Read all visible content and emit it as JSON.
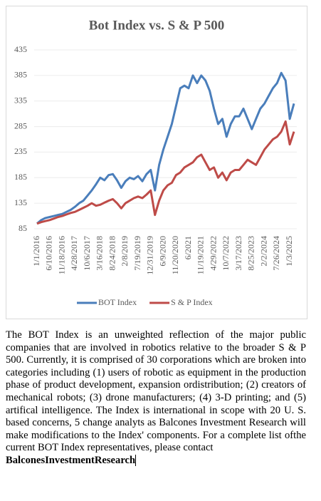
{
  "chart_data": {
    "type": "line",
    "title": "Bot Index vs. S & P 500",
    "categories": [
      "1/1/2016",
      null,
      null,
      "6/10/2016",
      null,
      null,
      "11/18/2016",
      null,
      null,
      "4/28/2017",
      null,
      null,
      "10/6/2017",
      null,
      null,
      "3/16/2018",
      null,
      null,
      "8/24/2018",
      null,
      null,
      "2/8/2019",
      null,
      null,
      "7/19/2019",
      null,
      null,
      "12/31/2019",
      null,
      null,
      "6/9/2020",
      null,
      null,
      "11/20/2020",
      null,
      null,
      "6/2021",
      null,
      null,
      "11/19/2021",
      null,
      null,
      "4/29/2022",
      null,
      null,
      "10/7/2022",
      null,
      null,
      "3/17/2023",
      null,
      null,
      "8/25/2023",
      null,
      null,
      "2/2/2024",
      null,
      null,
      "7/26/2024",
      null,
      null,
      "1/3/2025",
      null
    ],
    "series": [
      {
        "name": "BOT Index",
        "color": "#4a7ebb",
        "values": [
          95,
          102,
          106,
          108,
          110,
          112,
          114,
          118,
          122,
          128,
          135,
          140,
          150,
          160,
          172,
          185,
          180,
          190,
          192,
          180,
          165,
          178,
          185,
          182,
          188,
          178,
          192,
          200,
          160,
          210,
          240,
          265,
          290,
          325,
          360,
          365,
          360,
          385,
          370,
          385,
          375,
          355,
          320,
          290,
          300,
          265,
          290,
          305,
          305,
          320,
          300,
          280,
          300,
          320,
          330,
          345,
          360,
          370,
          390,
          375,
          300,
          330
        ]
      },
      {
        "name": "S & P Index",
        "color": "#be4b48",
        "values": [
          95,
          98,
          100,
          102,
          105,
          108,
          110,
          113,
          116,
          118,
          122,
          126,
          130,
          135,
          130,
          132,
          136,
          140,
          143,
          135,
          125,
          135,
          140,
          145,
          148,
          145,
          152,
          160,
          112,
          140,
          160,
          170,
          175,
          190,
          195,
          205,
          210,
          215,
          225,
          230,
          215,
          200,
          205,
          185,
          195,
          180,
          195,
          200,
          200,
          210,
          220,
          215,
          210,
          225,
          240,
          250,
          260,
          265,
          275,
          295,
          250,
          275
        ]
      }
    ],
    "ylim": [
      85,
      435
    ],
    "yticks": [
      85,
      135,
      185,
      235,
      285,
      335,
      385,
      435
    ],
    "grid": true,
    "legend": "bottom"
  },
  "text": {
    "paragraph": "The BOT Index is an unweighted reflection of the major public companies that are involved in robotics relative to the broader S & P 500. Currently, it is comprised of 30 corporations which are broken into categories including (1) users of robotic as equipment in the production phase of product development, expansion ordistribution; (2) creators of mechanical robots; (3) drone manufacturers; (4) 3-D printing; and (5) artifical intelligence. The Index is international in scope with 20 U. S. based concerns, 5 change analyts as Balcones Investment Research will make modifications to the Index' components. For a complete list ofthe current BOT Index representatives, please contact",
    "bold": "BalconesInvestmentResearch"
  }
}
